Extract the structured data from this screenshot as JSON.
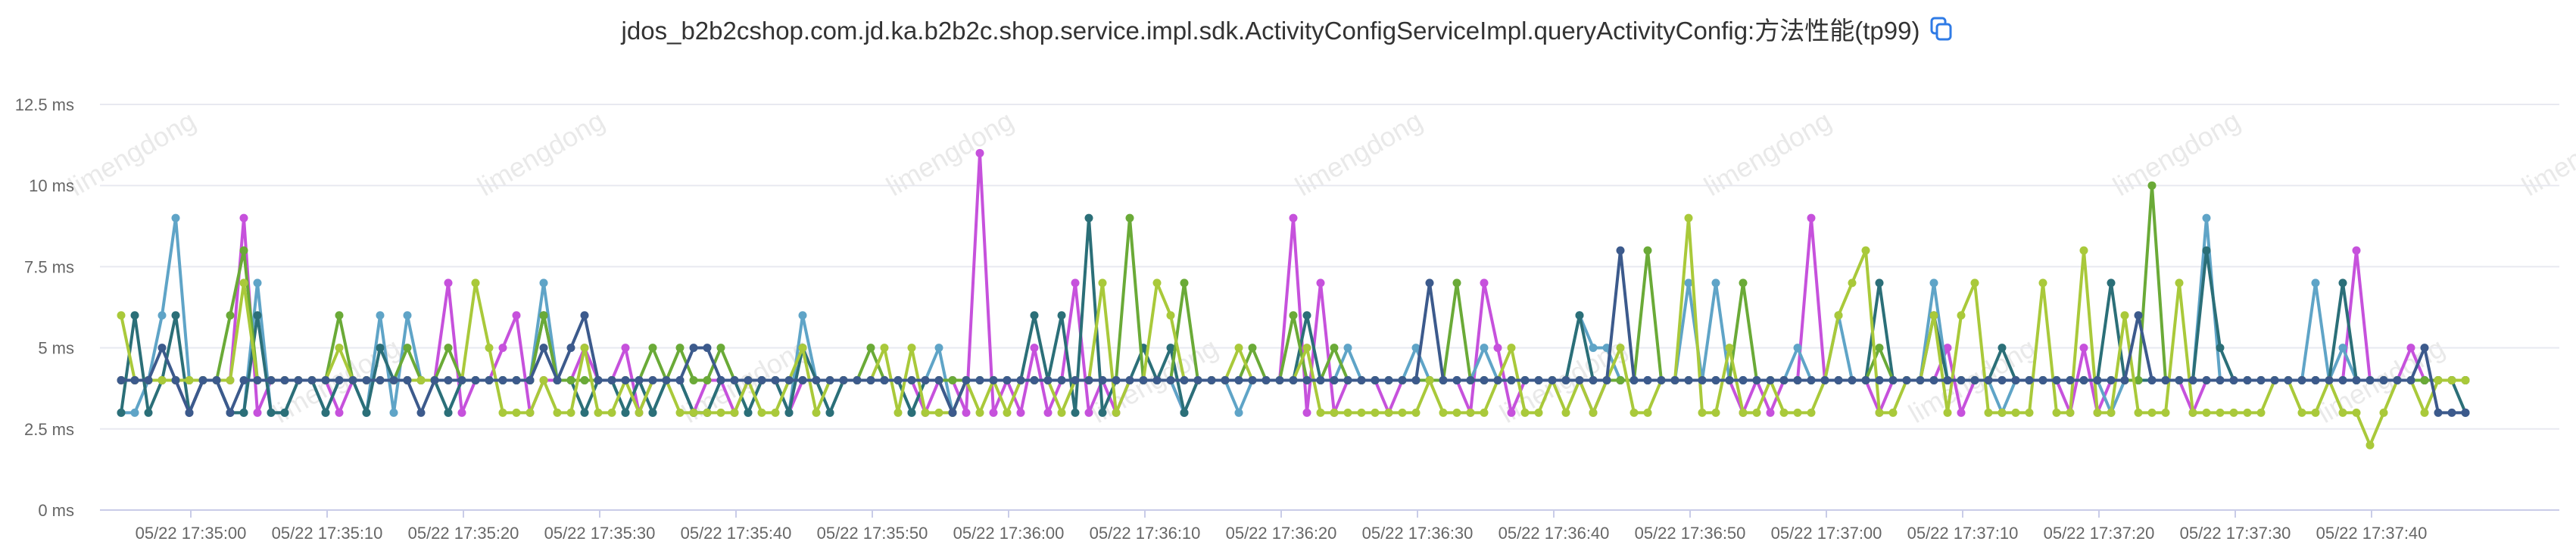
{
  "title": "jdos_b2b2cshop.com.jd.ka.b2b2c.shop.service.impl.sdk.ActivityConfigServiceImpl.queryActivityConfig:方法性能(tp99)",
  "copy_icon": "copy-icon",
  "watermark": "limengdong",
  "colors": [
    "#c651dc",
    "#5fa4c7",
    "#2b6f78",
    "#6aaa37",
    "#a9c93a",
    "#3c5a8c"
  ],
  "chart_data": {
    "type": "line",
    "title": "jdos_b2b2cshop.com.jd.ka.b2b2c.shop.service.impl.sdk.ActivityConfigServiceImpl.queryActivityConfig:方法性能(tp99)",
    "xlabel": "",
    "ylabel": "",
    "ylim": [
      0,
      12.5
    ],
    "y_ticks": [
      "0 ms",
      "2.5 ms",
      "5 ms",
      "7.5 ms",
      "10 ms",
      "12.5 ms"
    ],
    "x_ticks": [
      "05/22 17:35:00",
      "05/22 17:35:10",
      "05/22 17:35:20",
      "05/22 17:35:30",
      "05/22 17:35:40",
      "05/22 17:35:50",
      "05/22 17:36:00",
      "05/22 17:36:10",
      "05/22 17:36:20",
      "05/22 17:36:30",
      "05/22 17:36:40",
      "05/22 17:36:50",
      "05/22 17:37:00",
      "05/22 17:37:10",
      "05/22 17:37:20",
      "05/22 17:37:30",
      "05/22 17:37:40"
    ],
    "x_start": "17:34:53",
    "x_step_seconds": 1,
    "grid": true,
    "legend": "none",
    "series": [
      {
        "values": [
          4,
          4,
          4,
          4,
          4,
          3,
          4,
          4,
          4,
          9,
          3,
          4,
          4,
          4,
          4,
          4,
          3,
          4,
          4,
          4,
          4,
          4,
          4,
          4,
          7,
          3,
          4,
          4,
          5,
          6,
          3,
          4,
          4,
          4,
          5,
          4,
          4,
          5,
          3,
          4,
          4,
          4,
          3,
          4,
          4,
          3,
          4,
          4,
          4,
          3,
          4,
          4,
          4,
          4,
          4,
          4,
          4,
          4,
          4,
          3,
          4,
          4,
          3,
          11,
          3,
          4,
          3,
          5,
          3,
          4,
          7,
          3,
          4,
          3,
          4,
          4,
          4,
          4,
          3,
          4,
          4,
          4,
          4,
          4,
          4,
          4,
          9,
          3,
          7,
          3,
          4,
          4,
          4,
          3,
          4,
          4,
          4,
          4,
          4,
          3,
          7,
          5,
          3,
          4,
          4,
          4,
          4,
          4,
          3,
          4,
          4,
          4,
          4,
          4,
          4,
          4,
          4,
          4,
          4,
          3,
          4,
          3,
          4,
          4,
          9,
          4,
          4,
          4,
          4,
          3,
          4,
          4,
          4,
          4,
          5,
          3,
          4,
          4,
          4,
          4,
          4,
          4,
          4,
          3,
          5,
          3,
          4,
          4,
          4,
          4,
          4,
          4,
          3,
          4,
          4,
          4,
          4,
          4,
          4,
          4,
          4,
          4,
          4,
          4,
          8,
          4,
          4,
          4,
          5,
          4,
          4,
          4,
          4
        ]
      },
      {
        "values": [
          3,
          3,
          4,
          6,
          9,
          4,
          4,
          4,
          3,
          3,
          7,
          3,
          3,
          4,
          4,
          3,
          4,
          4,
          3,
          6,
          3,
          6,
          4,
          4,
          3,
          4,
          4,
          4,
          4,
          4,
          4,
          7,
          4,
          4,
          4,
          4,
          4,
          3,
          4,
          3,
          4,
          4,
          3,
          3,
          4,
          4,
          3,
          4,
          4,
          3,
          6,
          4,
          3,
          4,
          4,
          4,
          4,
          4,
          3,
          4,
          5,
          3,
          4,
          4,
          4,
          4,
          4,
          4,
          4,
          4,
          4,
          4,
          4,
          4,
          4,
          4,
          4,
          4,
          3,
          4,
          4,
          4,
          3,
          4,
          4,
          4,
          4,
          4,
          4,
          4,
          5,
          4,
          4,
          4,
          4,
          5,
          4,
          4,
          4,
          4,
          5,
          4,
          4,
          4,
          4,
          4,
          4,
          6,
          5,
          5,
          4,
          4,
          4,
          4,
          4,
          7,
          4,
          7,
          4,
          4,
          4,
          4,
          4,
          5,
          4,
          4,
          6,
          4,
          4,
          4,
          4,
          4,
          4,
          7,
          4,
          4,
          4,
          4,
          3,
          4,
          4,
          4,
          4,
          4,
          4,
          4,
          3,
          4,
          4,
          4,
          4,
          4,
          4,
          9,
          4,
          4,
          4,
          4,
          4,
          4,
          4,
          7,
          4,
          5,
          4,
          4,
          4,
          4,
          4,
          4,
          4,
          4,
          4
        ]
      },
      {
        "values": [
          3,
          6,
          3,
          4,
          6,
          3,
          4,
          4,
          3,
          3,
          6,
          3,
          3,
          4,
          4,
          3,
          4,
          4,
          3,
          5,
          4,
          4,
          4,
          4,
          3,
          4,
          4,
          4,
          4,
          4,
          4,
          6,
          4,
          4,
          3,
          4,
          4,
          3,
          4,
          3,
          4,
          4,
          3,
          3,
          4,
          4,
          3,
          4,
          4,
          3,
          5,
          4,
          3,
          4,
          4,
          4,
          4,
          4,
          3,
          4,
          4,
          3,
          4,
          4,
          4,
          4,
          4,
          6,
          4,
          6,
          3,
          9,
          3,
          4,
          4,
          5,
          4,
          5,
          3,
          4,
          4,
          4,
          4,
          4,
          4,
          4,
          4,
          6,
          4,
          4,
          4,
          4,
          4,
          4,
          4,
          4,
          4,
          4,
          4,
          4,
          4,
          4,
          4,
          4,
          4,
          4,
          4,
          6,
          4,
          4,
          4,
          4,
          4,
          4,
          4,
          4,
          4,
          4,
          4,
          4,
          4,
          4,
          4,
          4,
          4,
          4,
          4,
          4,
          4,
          7,
          4,
          4,
          4,
          6,
          4,
          4,
          4,
          4,
          5,
          4,
          4,
          4,
          4,
          4,
          4,
          4,
          7,
          4,
          4,
          4,
          4,
          4,
          4,
          8,
          5,
          4,
          4,
          4,
          4,
          4,
          4,
          4,
          4,
          7,
          4,
          4,
          4,
          4,
          4,
          4,
          4,
          4,
          3
        ]
      },
      {
        "values": [
          4,
          4,
          4,
          4,
          4,
          4,
          4,
          4,
          6,
          8,
          4,
          4,
          4,
          4,
          4,
          4,
          6,
          4,
          4,
          4,
          4,
          5,
          4,
          4,
          5,
          4,
          4,
          4,
          4,
          4,
          4,
          6,
          4,
          4,
          4,
          4,
          4,
          4,
          4,
          5,
          4,
          5,
          4,
          4,
          5,
          4,
          4,
          4,
          4,
          4,
          4,
          4,
          4,
          4,
          4,
          5,
          4,
          4,
          4,
          4,
          4,
          4,
          4,
          4,
          4,
          4,
          4,
          4,
          4,
          4,
          4,
          4,
          4,
          4,
          9,
          4,
          4,
          4,
          7,
          4,
          4,
          4,
          4,
          5,
          4,
          4,
          6,
          4,
          4,
          5,
          4,
          4,
          4,
          4,
          4,
          4,
          4,
          4,
          7,
          4,
          4,
          4,
          4,
          4,
          4,
          4,
          4,
          4,
          4,
          4,
          4,
          4,
          8,
          4,
          4,
          4,
          4,
          4,
          4,
          7,
          4,
          4,
          4,
          4,
          4,
          4,
          4,
          4,
          4,
          5,
          4,
          4,
          4,
          4,
          4,
          4,
          4,
          4,
          4,
          4,
          4,
          4,
          4,
          4,
          4,
          4,
          4,
          4,
          4,
          10,
          4,
          4,
          4,
          4,
          4,
          4,
          4,
          4,
          4,
          4,
          4,
          4,
          4,
          4,
          4,
          4,
          4,
          4,
          4,
          4,
          4,
          4,
          4
        ]
      },
      {
        "values": [
          6,
          4,
          4,
          4,
          4,
          4,
          4,
          4,
          4,
          7,
          4,
          4,
          4,
          4,
          4,
          4,
          5,
          4,
          4,
          4,
          4,
          4,
          4,
          4,
          4,
          4,
          7,
          5,
          3,
          3,
          3,
          4,
          3,
          3,
          5,
          3,
          3,
          4,
          3,
          4,
          4,
          3,
          3,
          3,
          3,
          3,
          4,
          3,
          3,
          4,
          5,
          3,
          4,
          4,
          4,
          4,
          5,
          3,
          5,
          3,
          3,
          3,
          4,
          3,
          4,
          3,
          4,
          4,
          4,
          3,
          4,
          4,
          7,
          3,
          4,
          4,
          7,
          6,
          4,
          4,
          4,
          4,
          5,
          4,
          4,
          4,
          4,
          5,
          3,
          3,
          3,
          3,
          3,
          3,
          3,
          3,
          4,
          3,
          3,
          3,
          3,
          4,
          5,
          3,
          3,
          4,
          3,
          4,
          3,
          4,
          5,
          3,
          3,
          4,
          4,
          9,
          3,
          3,
          5,
          3,
          3,
          4,
          3,
          3,
          3,
          4,
          6,
          7,
          8,
          3,
          3,
          4,
          4,
          6,
          3,
          6,
          7,
          3,
          3,
          3,
          3,
          7,
          3,
          3,
          8,
          3,
          3,
          6,
          3,
          3,
          3,
          7,
          3,
          3,
          3,
          3,
          3,
          3,
          4,
          4,
          3,
          3,
          4,
          3,
          3,
          2,
          3,
          4,
          4,
          3,
          4,
          4,
          4
        ]
      },
      {
        "values": [
          4,
          4,
          4,
          5,
          4,
          3,
          4,
          4,
          3,
          4,
          4,
          4,
          4,
          4,
          4,
          4,
          4,
          4,
          4,
          4,
          4,
          4,
          3,
          4,
          4,
          4,
          4,
          4,
          4,
          4,
          4,
          5,
          4,
          5,
          6,
          4,
          4,
          4,
          4,
          4,
          4,
          4,
          5,
          5,
          4,
          4,
          4,
          4,
          4,
          4,
          4,
          4,
          4,
          4,
          4,
          4,
          4,
          4,
          4,
          4,
          4,
          3,
          4,
          4,
          4,
          4,
          4,
          4,
          4,
          4,
          4,
          4,
          4,
          4,
          4,
          4,
          4,
          4,
          4,
          4,
          4,
          4,
          4,
          4,
          4,
          4,
          4,
          4,
          4,
          4,
          4,
          4,
          4,
          4,
          4,
          4,
          7,
          4,
          4,
          4,
          4,
          4,
          4,
          4,
          4,
          4,
          4,
          4,
          4,
          4,
          8,
          4,
          4,
          4,
          4,
          4,
          4,
          4,
          4,
          4,
          4,
          4,
          4,
          4,
          4,
          4,
          4,
          4,
          4,
          4,
          4,
          4,
          4,
          4,
          4,
          4,
          4,
          4,
          4,
          4,
          4,
          4,
          4,
          4,
          4,
          4,
          4,
          4,
          6,
          4,
          4,
          4,
          4,
          4,
          4,
          4,
          4,
          4,
          4,
          4,
          4,
          4,
          4,
          4,
          4,
          4,
          4,
          4,
          4,
          5,
          3,
          3,
          3
        ]
      }
    ]
  }
}
